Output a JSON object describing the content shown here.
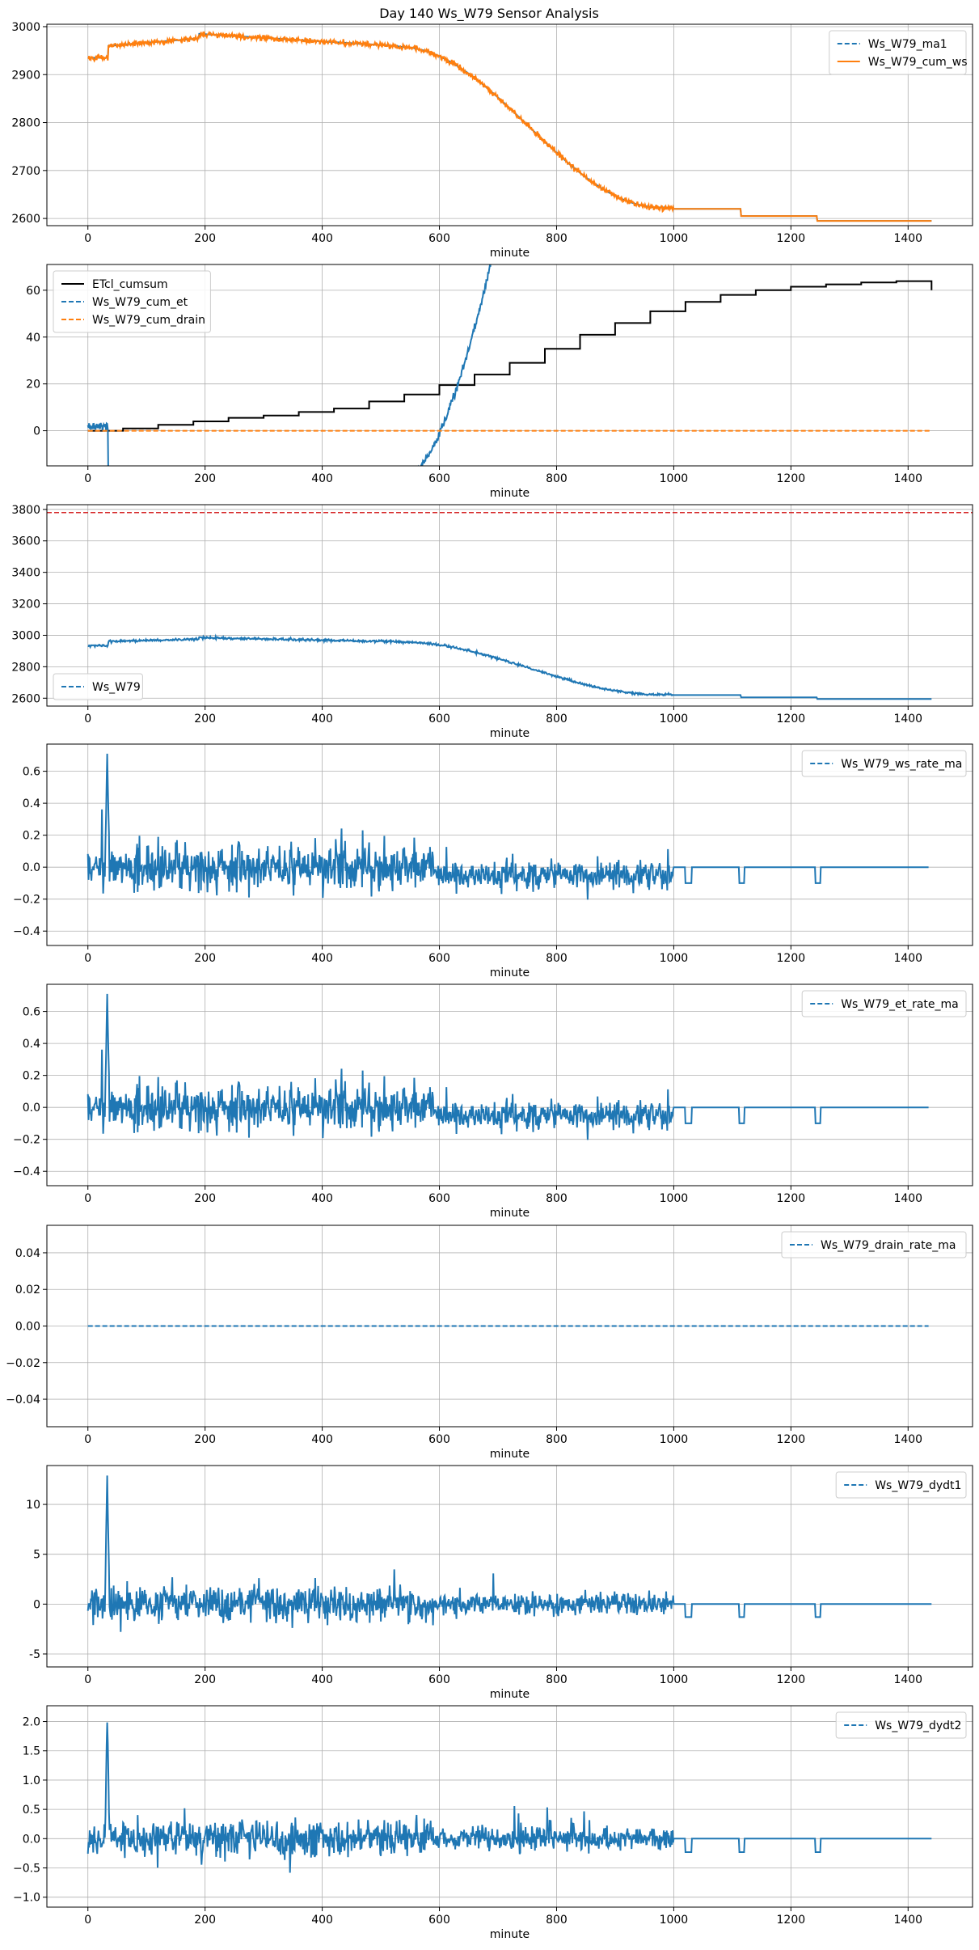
{
  "figure": {
    "title": "Day 140 Ws_W79 Sensor Analysis"
  },
  "colors": {
    "blue": "#1f77b4",
    "orange": "#ff7f0e",
    "black": "#000000",
    "red": "#d62728",
    "grid": "#b0b0b0"
  },
  "chart_data": [
    {
      "type": "line",
      "xlabel": "minute",
      "xlim": [
        -70,
        1510
      ],
      "ylim": [
        2585,
        3005
      ],
      "xticks": [
        0,
        200,
        400,
        600,
        800,
        1000,
        1200,
        1400
      ],
      "yticks": [
        2600,
        2700,
        2800,
        2900,
        3000
      ],
      "yformat": "int",
      "grid": true,
      "legend": "top-right",
      "series": [
        {
          "name": "Ws_W79_ma1",
          "color": "#1f77b4",
          "style": "dashed",
          "gen": "ws",
          "noise": 0
        },
        {
          "name": "Ws_W79_cum_ws",
          "color": "#ff7f0e",
          "style": "solid",
          "gen": "ws",
          "noise": 4
        }
      ]
    },
    {
      "type": "line",
      "xlabel": "minute",
      "xlim": [
        -70,
        1510
      ],
      "ylim": [
        -15,
        71
      ],
      "xticks": [
        0,
        200,
        400,
        600,
        800,
        1000,
        1200,
        1400
      ],
      "yticks": [
        0,
        20,
        40,
        60
      ],
      "yformat": "int",
      "grid": true,
      "legend": "top-left",
      "series": [
        {
          "name": "ETcl_cumsum",
          "color": "#000000",
          "style": "solid",
          "gen": "etstep"
        },
        {
          "name": "Ws_W79_cum_et",
          "color": "#1f77b4",
          "style": "dashed",
          "gen": "cumet",
          "noise": 1.2
        },
        {
          "name": "Ws_W79_cum_drain",
          "color": "#ff7f0e",
          "style": "dashed",
          "gen": "zero"
        }
      ]
    },
    {
      "type": "line",
      "xlabel": "minute",
      "xlim": [
        -70,
        1510
      ],
      "ylim": [
        2550,
        3830
      ],
      "xticks": [
        0,
        200,
        400,
        600,
        800,
        1000,
        1200,
        1400
      ],
      "yticks": [
        2600,
        2800,
        3000,
        3200,
        3400,
        3600,
        3800
      ],
      "yformat": "int",
      "grid": true,
      "legend": "bottom-left",
      "hline": {
        "y": 3780,
        "color": "#d62728",
        "style": "dashed"
      },
      "series": [
        {
          "name": "Ws_W79",
          "color": "#1f77b4",
          "style": "dashed",
          "gen": "ws",
          "noise": 5
        }
      ]
    },
    {
      "type": "line",
      "xlabel": "minute",
      "xlim": [
        -70,
        1510
      ],
      "ylim": [
        -0.49,
        0.77
      ],
      "xticks": [
        0,
        200,
        400,
        600,
        800,
        1000,
        1200,
        1400
      ],
      "yticks": [
        -0.4,
        -0.2,
        0.0,
        0.2,
        0.4,
        0.6
      ],
      "yformat": "1",
      "grid": true,
      "legend": "top-right",
      "series": [
        {
          "name": "Ws_W79_ws_rate_ma",
          "color": "#1f77b4",
          "style": "dashed",
          "gen": "rate",
          "amp": 0.1,
          "spike": 0.7,
          "xend": 1435,
          "seed": 7
        }
      ]
    },
    {
      "type": "line",
      "xlabel": "minute",
      "xlim": [
        -70,
        1510
      ],
      "ylim": [
        -0.49,
        0.77
      ],
      "xticks": [
        0,
        200,
        400,
        600,
        800,
        1000,
        1200,
        1400
      ],
      "yticks": [
        -0.4,
        -0.2,
        0.0,
        0.2,
        0.4,
        0.6
      ],
      "yformat": "1",
      "grid": true,
      "legend": "top-right",
      "series": [
        {
          "name": "Ws_W79_et_rate_ma",
          "color": "#1f77b4",
          "style": "dashed",
          "gen": "rate",
          "amp": 0.1,
          "spike": 0.7,
          "xend": 1435,
          "seed": 7
        }
      ]
    },
    {
      "type": "line",
      "xlabel": "minute",
      "xlim": [
        -70,
        1510
      ],
      "ylim": [
        -0.055,
        0.055
      ],
      "xticks": [
        0,
        200,
        400,
        600,
        800,
        1000,
        1200,
        1400
      ],
      "yticks": [
        -0.04,
        -0.02,
        0.0,
        0.02,
        0.04
      ],
      "yformat": "2",
      "grid": true,
      "legend": "top-right",
      "series": [
        {
          "name": "Ws_W79_drain_rate_ma",
          "color": "#1f77b4",
          "style": "dashed",
          "gen": "zero",
          "xend": 1435
        }
      ]
    },
    {
      "type": "line",
      "xlabel": "minute",
      "xlim": [
        -70,
        1510
      ],
      "ylim": [
        -6.3,
        13.9
      ],
      "xticks": [
        0,
        200,
        400,
        600,
        800,
        1000,
        1200,
        1400
      ],
      "yticks": [
        -5,
        0,
        5,
        10
      ],
      "yformat": "int",
      "grid": true,
      "legend": "top-right",
      "series": [
        {
          "name": "Ws_W79_dydt1",
          "color": "#1f77b4",
          "style": "dashed",
          "gen": "deriv",
          "amp": 1.3,
          "spike": 12.8,
          "xend": 1440,
          "seed": 13
        }
      ]
    },
    {
      "type": "line",
      "xlabel": "minute",
      "xlim": [
        -70,
        1510
      ],
      "ylim": [
        -1.17,
        2.27
      ],
      "xticks": [
        0,
        200,
        400,
        600,
        800,
        1000,
        1200,
        1400
      ],
      "yticks": [
        -1.0,
        -0.5,
        0.0,
        0.5,
        1.0,
        1.5,
        2.0
      ],
      "yformat": "1",
      "grid": true,
      "legend": "top-right",
      "series": [
        {
          "name": "Ws_W79_dydt2",
          "color": "#1f77b4",
          "style": "dashed",
          "gen": "deriv",
          "amp": 0.23,
          "spike": 2.1,
          "xend": 1440,
          "seed": 21
        }
      ]
    }
  ]
}
